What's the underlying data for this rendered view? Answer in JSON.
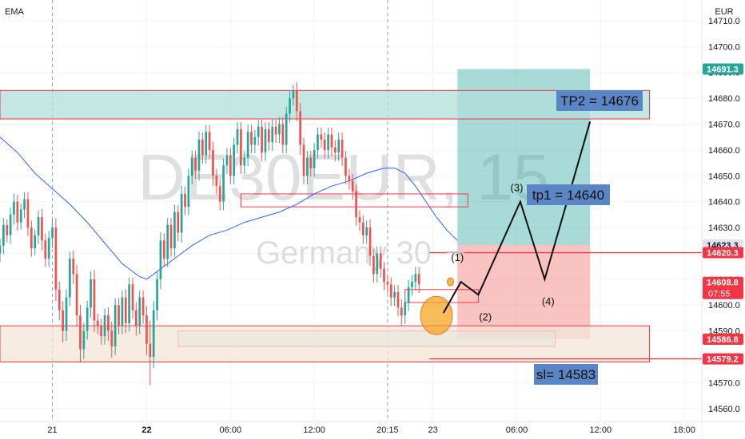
{
  "chart_data": {
    "type": "candlestick",
    "symbol_watermark": "DE30EUR, 15",
    "symbol_subtitle": "Germany 30",
    "indicator": "EMA",
    "currency": "EUR",
    "ylim": [
      14555,
      14718
    ],
    "y_ticks": [
      14560,
      14570,
      14580,
      14590,
      14600,
      14610,
      14620,
      14630,
      14640,
      14650,
      14660,
      14670,
      14680,
      14690,
      14700,
      14710
    ],
    "y_tick_labels": [
      "14560.0",
      "14570.0",
      "14580.0",
      "14590.0",
      "14600.0",
      "14610.0",
      "14620.0",
      "14630.0",
      "14640.0",
      "14650.0",
      "14660.0",
      "14670.0",
      "14680.0",
      "14690.0",
      "14700.0",
      "14710.0"
    ],
    "x_ticks": [
      {
        "t": 0,
        "label": "21",
        "bold": false
      },
      {
        "t": 27,
        "label": "22",
        "bold": true
      },
      {
        "t": 51,
        "label": "06:00",
        "bold": false
      },
      {
        "t": 75,
        "label": "12:00",
        "bold": false
      },
      {
        "t": 96,
        "label": "20:15",
        "bold": false
      },
      {
        "t": 109,
        "label": "23",
        "bold": false
      },
      {
        "t": 133,
        "label": "06:00",
        "bold": false
      },
      {
        "t": 157,
        "label": "12:00",
        "bold": false
      },
      {
        "t": 181,
        "label": "18:00",
        "bold": false
      }
    ],
    "x_range": [
      -15,
      186
    ],
    "candles": {
      "t_start": -15,
      "close": [
        14623,
        14631,
        14627,
        14635,
        14640,
        14632,
        14637,
        14641,
        14630,
        14622,
        14627,
        14634,
        14625,
        14618,
        14626,
        14630,
        14606,
        14598,
        14590,
        14603,
        14618,
        14612,
        14596,
        14583,
        14590,
        14599,
        14610,
        14594,
        14592,
        14588,
        14596,
        14590,
        14584,
        14600,
        14592,
        14603,
        14593,
        14608,
        14598,
        14592,
        14603,
        14596,
        14585,
        14580,
        14598,
        14610,
        14625,
        14618,
        14631,
        14622,
        14636,
        14628,
        14643,
        14638,
        14650,
        14657,
        14652,
        14664,
        14658,
        14667,
        14660,
        14650,
        14646,
        14640,
        14654,
        14658,
        14650,
        14662,
        14668,
        14654,
        14657,
        14667,
        14662,
        14665,
        14669,
        14659,
        14668,
        14663,
        14669,
        14666,
        14670,
        14662,
        14674,
        14680,
        14683,
        14675,
        14662,
        14650,
        14657,
        14653,
        14660,
        14666,
        14664,
        14660,
        14666,
        14661,
        14659,
        14664,
        14657,
        14650,
        14648,
        14644,
        14634,
        14632,
        14627,
        14630,
        14619,
        14612,
        14620,
        14614,
        14609,
        14608,
        14603,
        14605,
        14599,
        14596,
        14601,
        14607,
        14609,
        14612,
        14608
      ],
      "wick": [
        6,
        6,
        5,
        6,
        7,
        6,
        5,
        6,
        6,
        6,
        5,
        6,
        7,
        6,
        6,
        7,
        8,
        7,
        8,
        7,
        6,
        7,
        8,
        9,
        7,
        6,
        7,
        8,
        6,
        6,
        6,
        7,
        8,
        6,
        6,
        6,
        7,
        6,
        6,
        7,
        6,
        6,
        8,
        20,
        8,
        7,
        7,
        6,
        6,
        6,
        6,
        6,
        7,
        6,
        6,
        6,
        6,
        7,
        6,
        6,
        6,
        7,
        6,
        6,
        6,
        6,
        6,
        6,
        6,
        6,
        6,
        6,
        6,
        6,
        6,
        6,
        6,
        6,
        6,
        6,
        6,
        6,
        6,
        6,
        5,
        7,
        7,
        6,
        6,
        6,
        6,
        6,
        6,
        6,
        6,
        6,
        6,
        6,
        6,
        6,
        6,
        6,
        6,
        6,
        6,
        6,
        7,
        6,
        6,
        6,
        6,
        6,
        6,
        6,
        6,
        7,
        6,
        6,
        6,
        6,
        6
      ]
    },
    "ema": {
      "points": [
        [
          -15,
          14665
        ],
        [
          -10,
          14659
        ],
        [
          -5,
          14651
        ],
        [
          0,
          14645
        ],
        [
          5,
          14639
        ],
        [
          10,
          14632
        ],
        [
          15,
          14624
        ],
        [
          20,
          14616
        ],
        [
          25,
          14611
        ],
        [
          27,
          14610
        ],
        [
          30,
          14613
        ],
        [
          35,
          14618
        ],
        [
          40,
          14623
        ],
        [
          45,
          14627
        ],
        [
          50,
          14629
        ],
        [
          55,
          14632
        ],
        [
          60,
          14634
        ],
        [
          65,
          14636
        ],
        [
          70,
          14639
        ],
        [
          75,
          14643
        ],
        [
          80,
          14646
        ],
        [
          85,
          14648
        ],
        [
          90,
          14651
        ],
        [
          95,
          14653
        ],
        [
          98,
          14653
        ],
        [
          101,
          14651
        ],
        [
          104,
          14646
        ],
        [
          107,
          14640
        ],
        [
          110,
          14634
        ],
        [
          113,
          14629
        ],
        [
          116,
          14625
        ]
      ]
    },
    "price_labels": [
      {
        "value": 14691.3,
        "text": "14691.3",
        "style": "filled-teal"
      },
      {
        "value": 14623.3,
        "text": "14623.3",
        "style": "filled-gray"
      },
      {
        "value": 14620.3,
        "text": "14620.3",
        "style": "filled-red"
      },
      {
        "value": 14608.8,
        "text": "14608.8",
        "sub": "07:55",
        "style": "filled-red"
      },
      {
        "value": 14586.8,
        "text": "14586.8",
        "style": "filled-red"
      },
      {
        "value": 14579.2,
        "text": "14579.2",
        "style": "filled-red"
      }
    ],
    "annotations": {
      "tp2": "TP2 = 14676",
      "tp1": "tp1 = 14640",
      "sl": "sl= 14583",
      "wave_1": "(1)",
      "wave_2": "(2)",
      "wave_3": "(3)",
      "wave_4": "(4)"
    },
    "position": {
      "entry": 14623.3,
      "target": 14691.3,
      "stop": 14586.8,
      "t0": 116,
      "t1": 154
    },
    "zones": [
      {
        "t0": -15,
        "t1": 171,
        "y0": 14672,
        "y1": 14683,
        "kind": "resistance-filled"
      },
      {
        "t0": 54,
        "t1": 119,
        "y0": 14638,
        "y1": 14643,
        "kind": "outline"
      },
      {
        "t0": 101,
        "t1": 122,
        "y0": 14601,
        "y1": 14606,
        "kind": "outline"
      },
      {
        "t0": 36,
        "t1": 144,
        "y0": 14584,
        "y1": 14590,
        "kind": "outline-filled"
      },
      {
        "t0": -15,
        "t1": 171,
        "y0": 14578,
        "y1": 14592,
        "kind": "support-filled"
      }
    ],
    "hlines": [
      {
        "t0": 108,
        "value": 14620.3
      },
      {
        "t0": 108,
        "value": 14579.2
      }
    ],
    "path_projection": [
      [
        112,
        14597
      ],
      [
        117,
        14609
      ],
      [
        122,
        14604
      ],
      [
        134,
        14640
      ],
      [
        141,
        14610
      ],
      [
        154,
        14671
      ]
    ],
    "colors": {
      "up": "#26a69a",
      "down": "#ef5350",
      "ema": "#2962ff",
      "zone_fill": "#b2dfdb",
      "support_fill": "#f3e5d8",
      "label_bg": "#5b86c5",
      "teal_label": "#26a69a",
      "red_label": "#f23645"
    }
  }
}
